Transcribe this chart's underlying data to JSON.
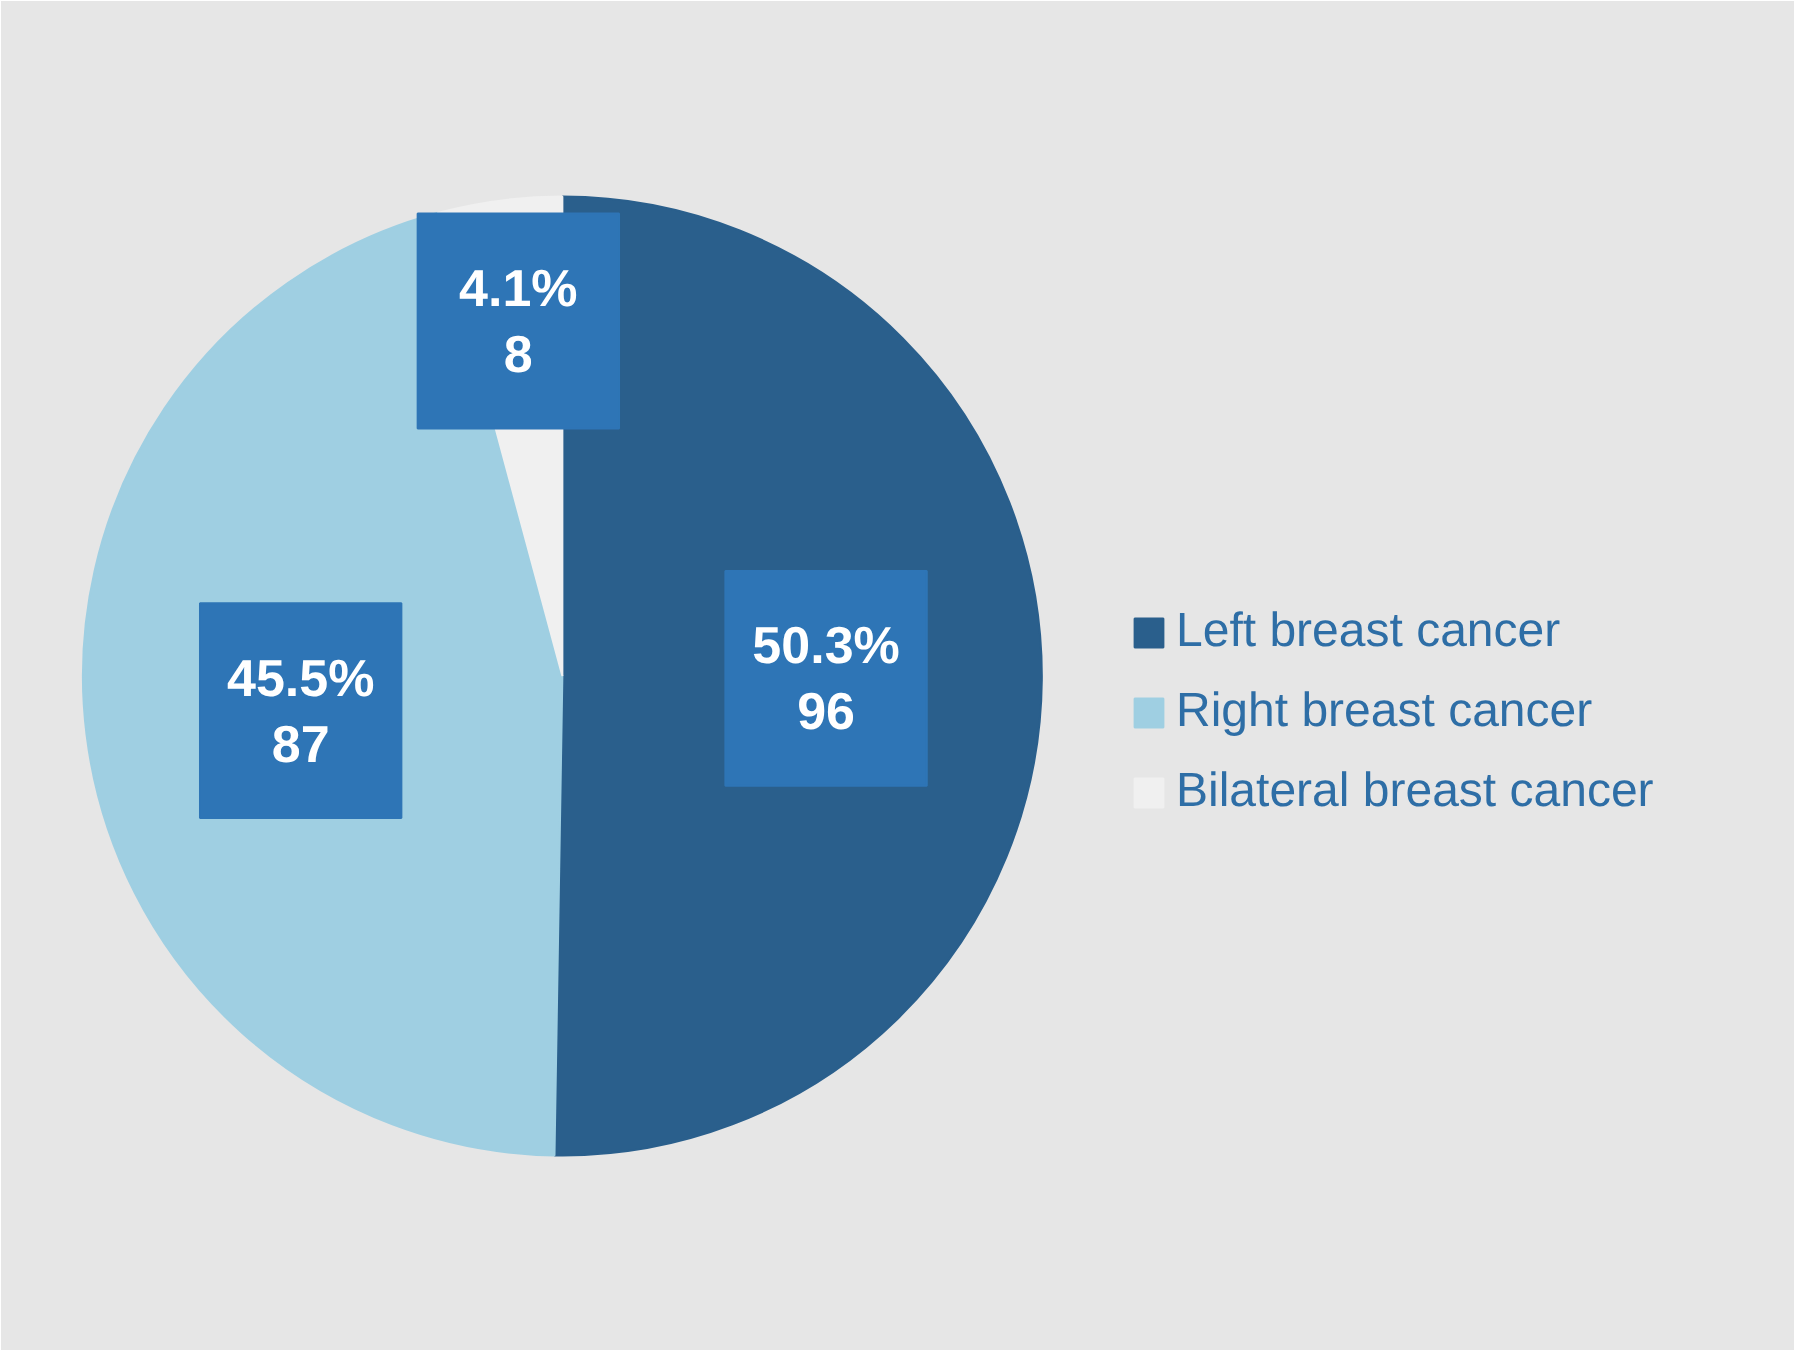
{
  "chart_data": {
    "type": "pie",
    "categories": [
      "Left breast cancer",
      "Right breast cancer",
      "Bilateral breast cancer"
    ],
    "values": [
      96,
      87,
      8
    ],
    "colors": [
      "#2a5f8c",
      "#9fcfe2",
      "#f0f0f0"
    ],
    "value_labels": [
      "50.3%\n96",
      "45.5%\n87",
      "4.1%\n8"
    ],
    "legend": "right"
  }
}
